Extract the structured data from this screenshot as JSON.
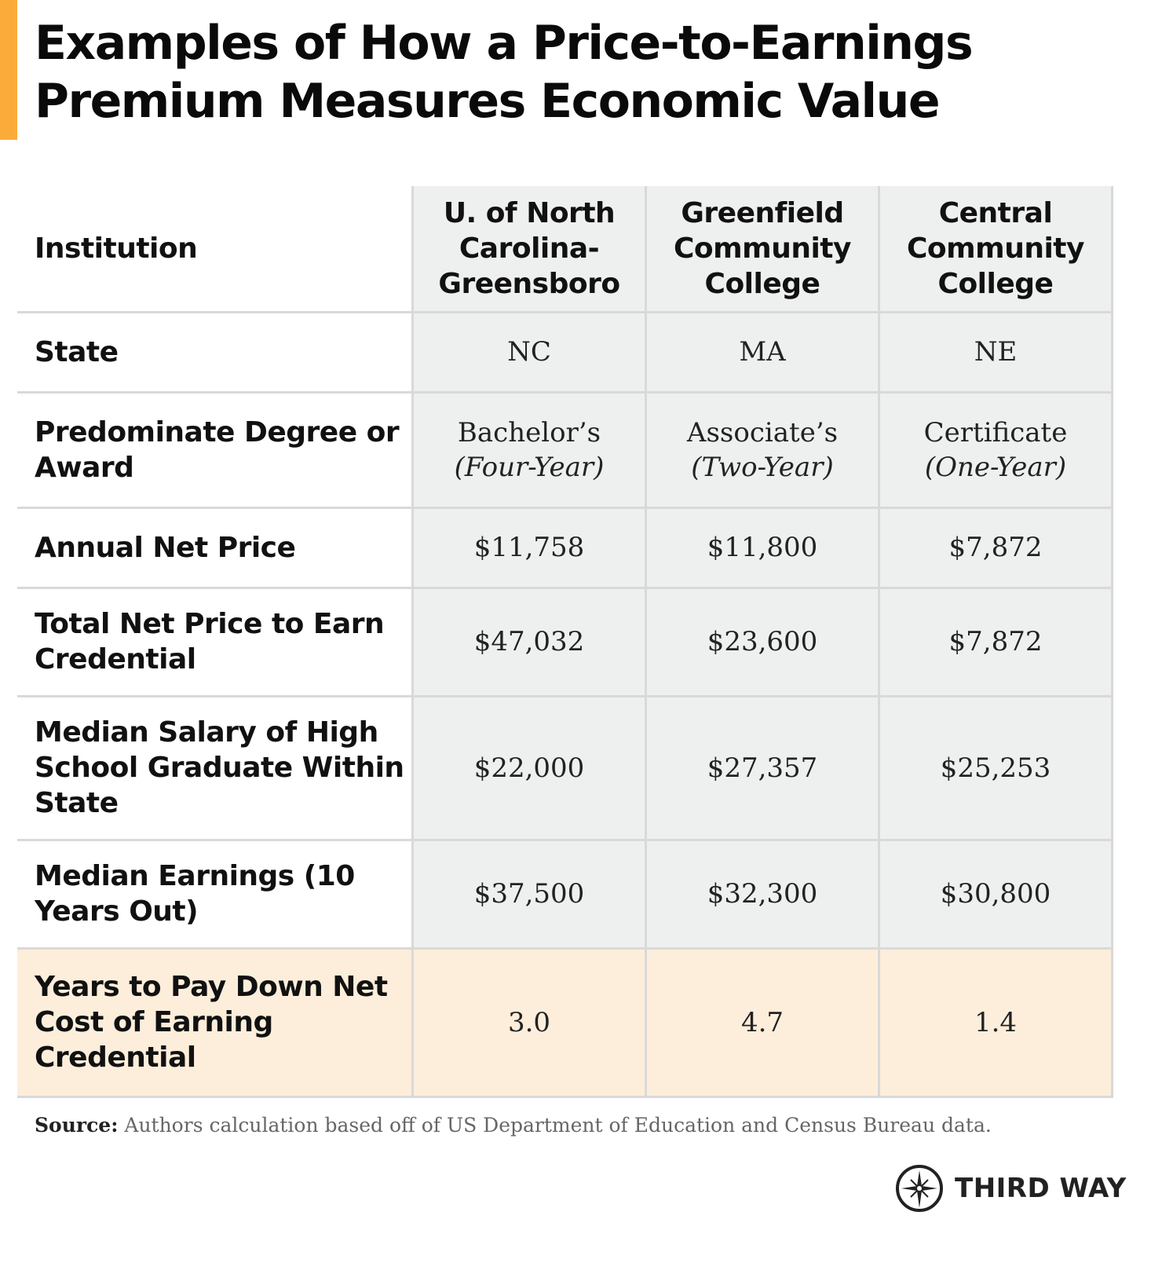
{
  "title_lines": [
    "Examples of How a Price-to-Earnings",
    "Premium Measures Economic Value"
  ],
  "colors": {
    "accent": "#fbab3a",
    "cell": "#eef0ef",
    "highlight": "#fdeedb",
    "border": "#d9d9d9"
  },
  "chart_data": {
    "type": "table",
    "columns": [
      "Institution",
      "U. of North Carolina-Greensboro",
      "Greenfield Community College",
      "Central Community College"
    ],
    "rows": [
      {
        "label": "State",
        "values": [
          "NC",
          "MA",
          "NE"
        ]
      },
      {
        "label": "Predominate Degree or Award",
        "values": [
          "Bachelor’s",
          "Associate’s",
          "Certificate"
        ],
        "sub": [
          "(Four-Year)",
          "(Two-Year)",
          "(One-Year)"
        ]
      },
      {
        "label": "Annual Net Price",
        "values": [
          "$11,758",
          "$11,800",
          "$7,872"
        ]
      },
      {
        "label": "Total Net Price to Earn Credential",
        "values": [
          "$47,032",
          "$23,600",
          "$7,872"
        ]
      },
      {
        "label": "Median Salary of High School Graduate Within State",
        "values": [
          "$22,000",
          "$27,357",
          "$25,253"
        ]
      },
      {
        "label": "Median Earnings (10 Years Out)",
        "values": [
          "$37,500",
          "$32,300",
          "$30,800"
        ]
      },
      {
        "label": "Years to Pay Down Net Cost of Earning Credential",
        "values": [
          "3.0",
          "4.7",
          "1.4"
        ],
        "highlight": true
      }
    ]
  },
  "source": {
    "label": "Source:",
    "text": " Authors calculation based off of US Department of Education and Census Bureau data."
  },
  "logo": {
    "text": "THIRD WAY",
    "icon": "compass-icon"
  }
}
